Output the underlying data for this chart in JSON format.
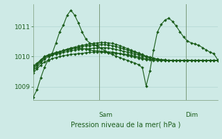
{
  "background_color": "#ceeae6",
  "grid_color": "#aad0cc",
  "line_color": "#1a5c1a",
  "title": "Pression niveau de la mer( hPa )",
  "ylim": [
    1008.55,
    1011.75
  ],
  "yticks": [
    1009,
    1010,
    1011
  ],
  "xlim": [
    0,
    49
  ],
  "sam_x": 17.5,
  "dim_x": 40.5,
  "series": [
    {
      "x": [
        0,
        1,
        2,
        3,
        4,
        5,
        6,
        7,
        8,
        9,
        10,
        11,
        12,
        13,
        14,
        15,
        16,
        17,
        18,
        19,
        20,
        21,
        22,
        23,
        24,
        25,
        26,
        27,
        28,
        29,
        30,
        31,
        32,
        33,
        34,
        35,
        36,
        37,
        38,
        39,
        40,
        41,
        42,
        43,
        44,
        45,
        46,
        47,
        48,
        49
      ],
      "y": [
        1009.45,
        1009.6,
        1009.72,
        1009.82,
        1009.88,
        1009.93,
        1009.97,
        1010.0,
        1010.03,
        1010.05,
        1010.07,
        1010.09,
        1010.1,
        1010.11,
        1010.13,
        1010.14,
        1010.15,
        1010.15,
        1010.15,
        1010.14,
        1010.13,
        1010.12,
        1010.11,
        1010.1,
        1010.09,
        1010.07,
        1010.05,
        1010.02,
        1009.99,
        1009.96,
        1009.93,
        1009.91,
        1009.9,
        1009.89,
        1009.88,
        1009.87,
        1009.87,
        1009.87,
        1009.87,
        1009.87,
        1009.87,
        1009.87,
        1009.87,
        1009.87,
        1009.87,
        1009.87,
        1009.87,
        1009.87,
        1009.87,
        1009.87
      ]
    },
    {
      "x": [
        0,
        1,
        2,
        3,
        4,
        5,
        6,
        7,
        8,
        9,
        10,
        11,
        12,
        13,
        14,
        15,
        16,
        17,
        18,
        19,
        20,
        21,
        22,
        23,
        24,
        25,
        26,
        27,
        28,
        29,
        30,
        31,
        32,
        33,
        34,
        35,
        36,
        37,
        38,
        39,
        40,
        41,
        42,
        43,
        44,
        45,
        46,
        47,
        48,
        49
      ],
      "y": [
        1009.55,
        1009.65,
        1009.8,
        1009.92,
        1010.0,
        1010.05,
        1010.1,
        1010.15,
        1010.2,
        1010.25,
        1010.27,
        1010.28,
        1010.28,
        1010.27,
        1010.25,
        1010.22,
        1010.2,
        1010.19,
        1010.18,
        1010.17,
        1010.16,
        1010.15,
        1010.13,
        1010.1,
        1010.07,
        1010.04,
        1010.01,
        1009.98,
        1009.95,
        1009.92,
        1009.9,
        1009.89,
        1009.88,
        1009.87,
        1009.87,
        1009.87,
        1009.87,
        1009.87,
        1009.87,
        1009.87,
        1009.87,
        1009.87,
        1009.87,
        1009.87,
        1009.87,
        1009.87,
        1009.87,
        1009.87,
        1009.87,
        1009.87
      ]
    },
    {
      "x": [
        0,
        1,
        2,
        3,
        4,
        5,
        6,
        7,
        8,
        9,
        10,
        11,
        12,
        13,
        14,
        15,
        16,
        17,
        18,
        19,
        20,
        21,
        22,
        23,
        24,
        25,
        26,
        27,
        28,
        29,
        30,
        31,
        32,
        33,
        34,
        35,
        36,
        37,
        38,
        39,
        40,
        41,
        42,
        43,
        44,
        45,
        46,
        47,
        48,
        49
      ],
      "y": [
        1009.6,
        1009.72,
        1009.85,
        1009.97,
        1010.03,
        1010.06,
        1010.09,
        1010.11,
        1010.14,
        1010.17,
        1010.2,
        1010.22,
        1010.24,
        1010.25,
        1010.26,
        1010.27,
        1010.28,
        1010.29,
        1010.3,
        1010.3,
        1010.29,
        1010.27,
        1010.24,
        1010.21,
        1010.18,
        1010.15,
        1010.12,
        1010.09,
        1010.06,
        1010.02,
        1009.99,
        1009.96,
        1009.94,
        1009.92,
        1009.9,
        1009.89,
        1009.88,
        1009.88,
        1009.88,
        1009.88,
        1009.88,
        1009.88,
        1009.88,
        1009.88,
        1009.88,
        1009.88,
        1009.88,
        1009.88,
        1009.88,
        1009.88
      ]
    },
    {
      "x": [
        0,
        1,
        2,
        3,
        4,
        5,
        6,
        7,
        8,
        9,
        10,
        11,
        12,
        13,
        14,
        15,
        16,
        17,
        18,
        19,
        20,
        21,
        22,
        23,
        24,
        25,
        26,
        27,
        28,
        29,
        30,
        31,
        32,
        33,
        34,
        35,
        36,
        37,
        38,
        39,
        40,
        41,
        42,
        43,
        44,
        45,
        46,
        47,
        48,
        49
      ],
      "y": [
        1009.65,
        1009.75,
        1009.88,
        1010.0,
        1010.06,
        1010.1,
        1010.13,
        1010.16,
        1010.19,
        1010.22,
        1010.25,
        1010.28,
        1010.31,
        1010.34,
        1010.36,
        1010.37,
        1010.38,
        1010.39,
        1010.4,
        1010.4,
        1010.39,
        1010.37,
        1010.34,
        1010.3,
        1010.26,
        1010.22,
        1010.18,
        1010.14,
        1010.1,
        1010.05,
        1010.01,
        1009.97,
        1009.94,
        1009.91,
        1009.89,
        1009.88,
        1009.88,
        1009.88,
        1009.88,
        1009.88,
        1009.88,
        1009.88,
        1009.88,
        1009.88,
        1009.88,
        1009.88,
        1009.88,
        1009.88,
        1009.88,
        1009.88
      ]
    },
    {
      "x": [
        0,
        1,
        2,
        3,
        4,
        5,
        6,
        7,
        8,
        9,
        10,
        11,
        12,
        13,
        14,
        15,
        16,
        17,
        18,
        19,
        20,
        21,
        22,
        23,
        24,
        25,
        26,
        27,
        28,
        29,
        30,
        31,
        32,
        33,
        34,
        35,
        36,
        37,
        38,
        39,
        40,
        41,
        42,
        43,
        44,
        45,
        46,
        47,
        48,
        49
      ],
      "y": [
        1009.7,
        1009.78,
        1009.9,
        1010.0,
        1010.06,
        1010.1,
        1010.14,
        1010.17,
        1010.21,
        1010.25,
        1010.29,
        1010.32,
        1010.35,
        1010.38,
        1010.4,
        1010.42,
        1010.44,
        1010.46,
        1010.47,
        1010.47,
        1010.46,
        1010.44,
        1010.41,
        1010.37,
        1010.32,
        1010.27,
        1010.22,
        1010.17,
        1010.12,
        1010.07,
        1010.02,
        1009.98,
        1009.95,
        1009.92,
        1009.9,
        1009.89,
        1009.88,
        1009.88,
        1009.88,
        1009.88,
        1009.88,
        1009.88,
        1009.88,
        1009.88,
        1009.88,
        1009.88,
        1009.88,
        1009.88,
        1009.88,
        1009.88
      ]
    },
    {
      "x": [
        0,
        1,
        2,
        3,
        4,
        5,
        6,
        7,
        8,
        9,
        10,
        11,
        12,
        13,
        14,
        15,
        16,
        17,
        18,
        19,
        20,
        21,
        22,
        23,
        24,
        25,
        26,
        27,
        28,
        29,
        30,
        31,
        32,
        33,
        34,
        35,
        36,
        37,
        38,
        39,
        40,
        41,
        42,
        43,
        44,
        45,
        46,
        47,
        48,
        49
      ],
      "y": [
        1008.65,
        1008.9,
        1009.3,
        1009.65,
        1009.9,
        1010.1,
        1010.45,
        1010.82,
        1011.05,
        1011.38,
        1011.55,
        1011.38,
        1011.12,
        1010.82,
        1010.58,
        1010.45,
        1010.4,
        1010.35,
        1010.28,
        1010.2,
        1010.13,
        1010.07,
        1010.02,
        1009.97,
        1009.92,
        1009.88,
        1009.83,
        1009.79,
        1009.73,
        1009.63,
        1009.02,
        1009.52,
        1010.22,
        1010.82,
        1011.07,
        1011.22,
        1011.28,
        1011.18,
        1011.02,
        1010.83,
        1010.65,
        1010.52,
        1010.46,
        1010.42,
        1010.38,
        1010.3,
        1010.22,
        1010.15,
        1010.1,
        1009.9
      ]
    }
  ],
  "marker": "D",
  "markersize": 2.0,
  "linewidth": 0.8
}
